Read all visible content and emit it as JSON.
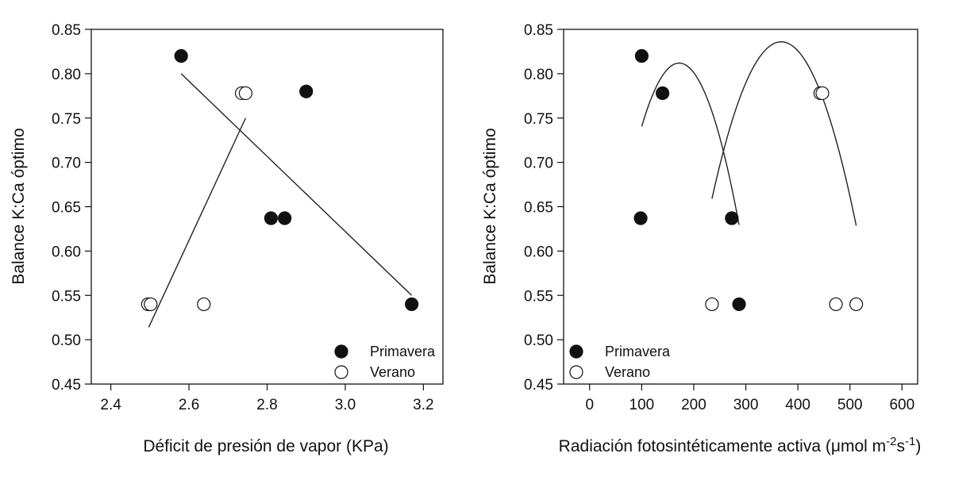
{
  "chart_data": [
    {
      "type": "scatter",
      "xlabel": "Déficit de presión de vapor (KPa)",
      "ylabel": "Balance K:Ca óptimo",
      "xlim": [
        2.35,
        3.25
      ],
      "ylim": [
        0.45,
        0.85
      ],
      "xticks": [
        2.4,
        2.6,
        2.8,
        3.0,
        3.2
      ],
      "xtick_labels": [
        "2.4",
        "2.6",
        "2.8",
        "3.0",
        "3.2"
      ],
      "yticks": [
        0.45,
        0.5,
        0.55,
        0.6,
        0.65,
        0.7,
        0.75,
        0.8,
        0.85
      ],
      "ytick_labels": [
        "0.45",
        "0.50",
        "0.55",
        "0.60",
        "0.65",
        "0.70",
        "0.75",
        "0.80",
        "0.85"
      ],
      "legend": {
        "placement": "bottom-right"
      },
      "series": [
        {
          "name": "Primavera",
          "marker": "filled",
          "points": [
            [
              2.58,
              0.82
            ],
            [
              2.9,
              0.78
            ],
            [
              2.81,
              0.637
            ],
            [
              2.845,
              0.637
            ],
            [
              3.17,
              0.54
            ]
          ],
          "fit": {
            "kind": "linear",
            "x_range": [
              2.58,
              3.17
            ],
            "y_range": [
              0.8,
              0.55
            ]
          }
        },
        {
          "name": "Verano",
          "marker": "open",
          "points": [
            [
              2.735,
              0.778
            ],
            [
              2.745,
              0.778
            ],
            [
              2.495,
              0.54
            ],
            [
              2.502,
              0.54
            ],
            [
              2.638,
              0.54
            ]
          ],
          "fit": {
            "kind": "linear",
            "x_range": [
              2.497,
              2.745
            ],
            "y_range": [
              0.514,
              0.75
            ]
          }
        }
      ]
    },
    {
      "type": "scatter",
      "xlabel": "Radiación fotosintéticamente activa (μmol m",
      "xlabel_sup1": "-2",
      "xlabel_mid": "s",
      "xlabel_sup2": "-1",
      "xlabel_end": ")",
      "ylabel": "Balance K:Ca óptimo",
      "xlim": [
        -50,
        630
      ],
      "ylim": [
        0.45,
        0.85
      ],
      "xticks": [
        0,
        100,
        200,
        300,
        400,
        500,
        600
      ],
      "xtick_labels": [
        "0",
        "100",
        "200",
        "300",
        "400",
        "500",
        "600"
      ],
      "yticks": [
        0.45,
        0.5,
        0.55,
        0.6,
        0.65,
        0.7,
        0.75,
        0.8,
        0.85
      ],
      "ytick_labels": [
        "0.45",
        "0.50",
        "0.55",
        "0.60",
        "0.65",
        "0.70",
        "0.75",
        "0.80",
        "0.85"
      ],
      "legend": {
        "placement": "bottom-left"
      },
      "series": [
        {
          "name": "Primavera",
          "marker": "filled",
          "points": [
            [
              100,
              0.82
            ],
            [
              140,
              0.778
            ],
            [
              98,
              0.637
            ],
            [
              273,
              0.637
            ],
            [
              287,
              0.54
            ]
          ],
          "fit": {
            "kind": "quadratic",
            "x_range": [
              100,
              287
            ],
            "vertex": [
              172,
              0.812
            ],
            "curvature": -1.38e-05
          }
        },
        {
          "name": "Verano",
          "marker": "open",
          "points": [
            [
              443,
              0.778
            ],
            [
              447,
              0.778
            ],
            [
              235,
              0.54
            ],
            [
              473,
              0.54
            ],
            [
              512,
              0.54
            ]
          ],
          "fit": {
            "kind": "quadratic",
            "x_range": [
              235,
              512
            ],
            "vertex": [
              368,
              0.836
            ],
            "curvature": -1e-05
          }
        }
      ]
    }
  ]
}
